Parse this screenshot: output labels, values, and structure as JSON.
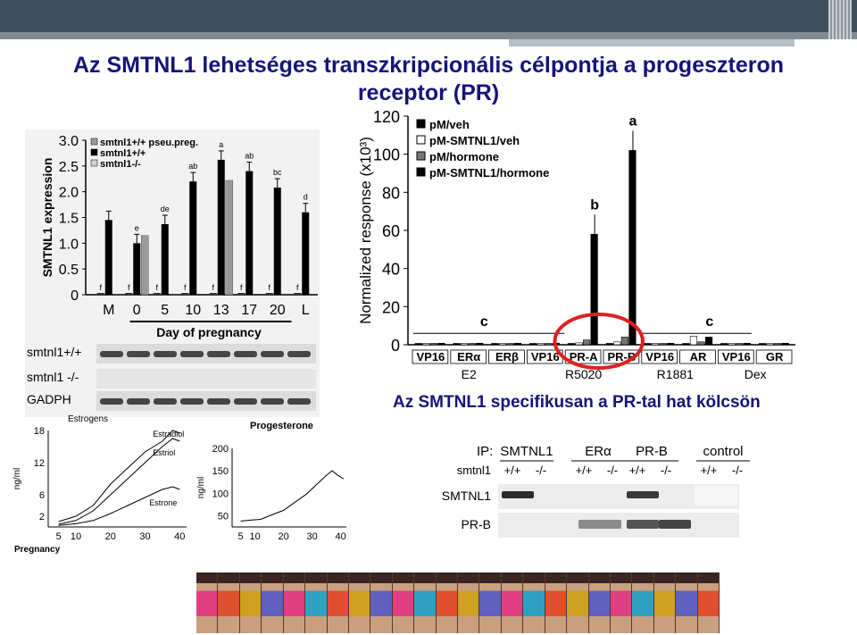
{
  "slide": {
    "title": "Az SMTNL1 lehetséges transzkripcionális célpontja a progeszteron receptor (PR)",
    "subtitle": "Az SMTNL1 specifikusan a PR-tal hat kölcsön"
  },
  "panel_expression": {
    "legend": [
      "smtnl1+/+ pseu.preg.",
      "smtnl1+/+",
      "smtnl1-/-"
    ],
    "ylabel": "SMTNL1 expression",
    "xlabel": "Day of pregnancy",
    "yticks": [
      "0",
      "0.5",
      "1.0",
      "1.5",
      "2.0",
      "2.5",
      "3.0"
    ],
    "blot_labels": [
      "smtnl1+/+",
      "smtnl1 -/-",
      "GADPH"
    ]
  },
  "panel_response": {
    "legend": [
      "pM/veh",
      "pM-SMTNL1/veh",
      "pM/hormone",
      "pM-SMTNL1/hormone"
    ],
    "ylabel": "Normalized response (x10³)",
    "yticks": [
      "0",
      "20",
      "40",
      "60",
      "80",
      "100",
      "120"
    ],
    "group_names": [
      "E2",
      "R5020",
      "R1881",
      "Dex"
    ]
  },
  "panel_estrogens": {
    "title": "Estrogens",
    "ylabel": "ng/ml",
    "xlabel": "Pregnancy",
    "yticks": [
      "2",
      "6",
      "12",
      "18"
    ],
    "xticks": [
      "5",
      "10",
      "20",
      "30",
      "40"
    ],
    "series_labels": [
      "Estradiol",
      "Estriol",
      "Estrone"
    ]
  },
  "panel_progesterone": {
    "title": "Progesterone",
    "ylabel": "ng/ml",
    "yticks": [
      "50",
      "100",
      "150",
      "200"
    ],
    "xticks": [
      "5",
      "10",
      "20",
      "30",
      "40"
    ]
  },
  "panel_ip": {
    "ip_label": "IP:",
    "ip_groups": [
      "SMTNL1",
      "ERα",
      "PR-B",
      "control"
    ],
    "genotype_label": "smtnl1",
    "genotypes": [
      "+/+",
      "-/-",
      "+/+",
      "-/-",
      "+/+",
      "-/-",
      "+/+",
      "-/-"
    ],
    "row_labels": [
      "SMTNL1",
      "PR-B"
    ]
  },
  "chart_data": [
    {
      "type": "bar",
      "categories": [
        "M",
        "0",
        "5",
        "10",
        "13",
        "17",
        "20",
        "L"
      ],
      "xlabel": "Day of pregnancy",
      "ylabel": "SMTNL1 expression",
      "ylim": [
        0,
        3.0
      ],
      "series": [
        {
          "name": "smtnl1+/+ pseu.preg.",
          "values": [
            null,
            1.15,
            null,
            null,
            2.22,
            null,
            null,
            null
          ]
        },
        {
          "name": "smtnl1+/+",
          "values": [
            1.45,
            1.0,
            1.37,
            2.2,
            2.62,
            2.4,
            2.08,
            1.6
          ]
        },
        {
          "name": "smtnl1-/-",
          "values": [
            0,
            0,
            0,
            0,
            0,
            0,
            0,
            0
          ]
        }
      ],
      "annotations": [
        "e",
        "de",
        "ab",
        "a",
        "ab",
        "bc",
        "d",
        "f",
        "f",
        "f",
        "f",
        "f",
        "f",
        "f"
      ],
      "colors": {
        "pseu": "#9a9a9a",
        "wt": "#000000",
        "ko": "#d0d0d0"
      }
    },
    {
      "type": "bar",
      "categories": [
        "VP16",
        "ERα",
        "ERβ",
        "VP16",
        "PR-A",
        "PR-B",
        "VP16",
        "AR",
        "VP16",
        "GR"
      ],
      "ylabel": "Normalized response (x10³)",
      "ylim": [
        0,
        120
      ],
      "series": [
        {
          "name": "pM/veh",
          "values": [
            0.5,
            0.5,
            0.5,
            0.5,
            0.6,
            0.6,
            0.5,
            0.5,
            0.5,
            0.5
          ]
        },
        {
          "name": "pM-SMTNL1/veh",
          "values": [
            0.6,
            0.6,
            0.6,
            0.6,
            1.0,
            1.5,
            0.6,
            4.5,
            0.6,
            0.6
          ]
        },
        {
          "name": "pM/hormone",
          "values": [
            0.6,
            0.6,
            0.6,
            0.6,
            2.5,
            4.0,
            0.6,
            1.5,
            0.6,
            0.6
          ]
        },
        {
          "name": "pM-SMTNL1/hormone",
          "values": [
            0.8,
            0.8,
            0.8,
            0.8,
            58,
            102,
            0.8,
            4.0,
            0.8,
            0.8
          ]
        }
      ],
      "annotations": [
        "a",
        "b",
        "c",
        "c"
      ]
    },
    {
      "type": "line",
      "title": "Estrogens",
      "ylabel": "ng/ml",
      "xlabel": "Pregnancy",
      "ylim": [
        0,
        18
      ],
      "xlim": [
        2,
        42
      ],
      "series": [
        {
          "name": "Estradiol",
          "x": [
            5,
            10,
            15,
            20,
            25,
            30,
            35,
            38,
            40
          ],
          "y": [
            1,
            2,
            4,
            8,
            11,
            14,
            16,
            18,
            17.5
          ]
        },
        {
          "name": "Estriol",
          "x": [
            5,
            10,
            15,
            20,
            25,
            30,
            35,
            38,
            40
          ],
          "y": [
            0.5,
            1.2,
            3,
            6,
            9,
            12,
            15,
            16.5,
            16
          ]
        },
        {
          "name": "Estrone",
          "x": [
            5,
            10,
            15,
            20,
            25,
            30,
            35,
            38,
            40
          ],
          "y": [
            0.3,
            0.6,
            1.2,
            2.5,
            4,
            5.5,
            7,
            7.5,
            7
          ]
        }
      ]
    },
    {
      "type": "line",
      "title": "Progesterone",
      "ylabel": "ng/ml",
      "ylim": [
        25,
        200
      ],
      "xlim": [
        2,
        42
      ],
      "series": [
        {
          "name": "",
          "x": [
            5,
            8,
            12,
            16,
            20,
            24,
            28,
            32,
            35,
            37,
            39,
            41
          ],
          "y": [
            38,
            40,
            42,
            52,
            62,
            80,
            98,
            122,
            140,
            150,
            140,
            132
          ]
        }
      ]
    }
  ]
}
